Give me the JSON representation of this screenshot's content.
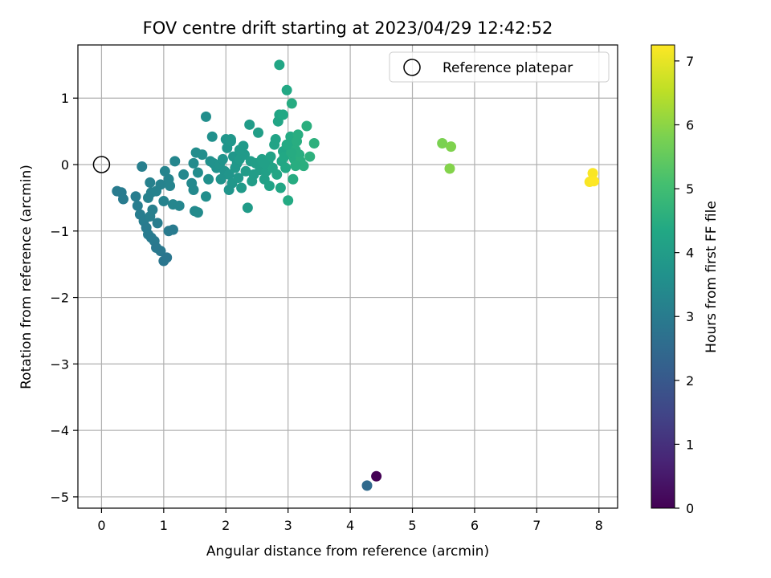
{
  "chart_data": {
    "type": "scatter",
    "title": "FOV centre drift starting at 2023/04/29 12:42:52",
    "xlabel": "Angular distance from reference (arcmin)",
    "ylabel": "Rotation from reference (arcmin)",
    "colorbar_label": "Hours from first FF file",
    "xlim": [
      -0.38,
      8.3
    ],
    "ylim": [
      -5.17,
      1.8
    ],
    "clim": [
      0,
      7.25
    ],
    "x_ticks": [
      0,
      1,
      2,
      3,
      4,
      5,
      6,
      7,
      8
    ],
    "y_ticks": [
      -5,
      -4,
      -3,
      -2,
      -1,
      0,
      1
    ],
    "colorbar_ticks": [
      0,
      1,
      2,
      3,
      4,
      5,
      6,
      7
    ],
    "grid": true,
    "colormap": "viridis",
    "legend": {
      "placement": "top-right",
      "entries": [
        "Reference platepar"
      ]
    },
    "reference_point": {
      "x": 0,
      "y": 0,
      "label": "Reference platepar"
    },
    "points": [
      {
        "x": 4.42,
        "y": -4.69,
        "h": 0.0
      },
      {
        "x": 4.27,
        "y": -4.83,
        "h": 2.5
      },
      {
        "x": 0.25,
        "y": -0.4,
        "h": 3.0
      },
      {
        "x": 0.32,
        "y": -0.42,
        "h": 3.0
      },
      {
        "x": 0.35,
        "y": -0.52,
        "h": 3.0
      },
      {
        "x": 0.55,
        "y": -0.48,
        "h": 3.05
      },
      {
        "x": 0.58,
        "y": -0.62,
        "h": 3.05
      },
      {
        "x": 0.62,
        "y": -0.75,
        "h": 3.05
      },
      {
        "x": 0.68,
        "y": -0.85,
        "h": 3.05
      },
      {
        "x": 0.65,
        "y": -0.03,
        "h": 3.1
      },
      {
        "x": 0.72,
        "y": -0.95,
        "h": 3.0
      },
      {
        "x": 0.75,
        "y": -1.05,
        "h": 3.0
      },
      {
        "x": 0.8,
        "y": -1.1,
        "h": 2.95
      },
      {
        "x": 0.85,
        "y": -1.15,
        "h": 2.95
      },
      {
        "x": 0.88,
        "y": -1.25,
        "h": 2.9
      },
      {
        "x": 0.95,
        "y": -1.3,
        "h": 2.9
      },
      {
        "x": 1.0,
        "y": -1.45,
        "h": 2.85
      },
      {
        "x": 1.05,
        "y": -1.4,
        "h": 2.85
      },
      {
        "x": 1.08,
        "y": -1.0,
        "h": 3.0
      },
      {
        "x": 1.15,
        "y": -0.98,
        "h": 3.0
      },
      {
        "x": 0.9,
        "y": -0.88,
        "h": 3.05
      },
      {
        "x": 0.78,
        "y": -0.78,
        "h": 3.1
      },
      {
        "x": 0.82,
        "y": -0.68,
        "h": 3.1
      },
      {
        "x": 0.75,
        "y": -0.5,
        "h": 3.15
      },
      {
        "x": 0.8,
        "y": -0.42,
        "h": 3.15
      },
      {
        "x": 0.78,
        "y": -0.27,
        "h": 3.15
      },
      {
        "x": 0.88,
        "y": -0.4,
        "h": 3.2
      },
      {
        "x": 0.95,
        "y": -0.3,
        "h": 3.2
      },
      {
        "x": 1.0,
        "y": -0.55,
        "h": 3.2
      },
      {
        "x": 1.02,
        "y": -0.1,
        "h": 3.25
      },
      {
        "x": 1.1,
        "y": -0.32,
        "h": 3.25
      },
      {
        "x": 1.08,
        "y": -0.22,
        "h": 3.25
      },
      {
        "x": 1.15,
        "y": -0.6,
        "h": 3.3
      },
      {
        "x": 1.18,
        "y": 0.05,
        "h": 3.3
      },
      {
        "x": 1.25,
        "y": -0.62,
        "h": 3.3
      },
      {
        "x": 1.32,
        "y": -0.15,
        "h": 3.35
      },
      {
        "x": 1.45,
        "y": -0.28,
        "h": 3.4
      },
      {
        "x": 1.48,
        "y": -0.38,
        "h": 3.4
      },
      {
        "x": 1.5,
        "y": -0.7,
        "h": 3.4
      },
      {
        "x": 1.55,
        "y": -0.72,
        "h": 3.45
      },
      {
        "x": 1.48,
        "y": 0.02,
        "h": 3.45
      },
      {
        "x": 1.52,
        "y": 0.18,
        "h": 3.5
      },
      {
        "x": 1.55,
        "y": -0.12,
        "h": 3.5
      },
      {
        "x": 1.62,
        "y": 0.15,
        "h": 3.55
      },
      {
        "x": 1.68,
        "y": -0.48,
        "h": 3.55
      },
      {
        "x": 1.72,
        "y": -0.22,
        "h": 3.6
      },
      {
        "x": 1.75,
        "y": 0.05,
        "h": 3.6
      },
      {
        "x": 1.8,
        "y": 0.02,
        "h": 3.65
      },
      {
        "x": 1.85,
        "y": -0.05,
        "h": 3.65
      },
      {
        "x": 1.9,
        "y": 0.0,
        "h": 3.7
      },
      {
        "x": 1.95,
        "y": 0.08,
        "h": 3.7
      },
      {
        "x": 1.98,
        "y": -0.1,
        "h": 3.7
      },
      {
        "x": 2.0,
        "y": 0.38,
        "h": 3.75
      },
      {
        "x": 2.02,
        "y": 0.25,
        "h": 3.75
      },
      {
        "x": 2.05,
        "y": -0.15,
        "h": 3.75
      },
      {
        "x": 2.08,
        "y": 0.35,
        "h": 3.8
      },
      {
        "x": 2.1,
        "y": -0.28,
        "h": 3.8
      },
      {
        "x": 2.12,
        "y": 0.12,
        "h": 3.8
      },
      {
        "x": 2.15,
        "y": -0.05,
        "h": 3.85
      },
      {
        "x": 2.18,
        "y": 0.02,
        "h": 3.85
      },
      {
        "x": 2.2,
        "y": -0.2,
        "h": 3.85
      },
      {
        "x": 2.22,
        "y": 0.08,
        "h": 3.9
      },
      {
        "x": 2.25,
        "y": -0.35,
        "h": 3.9
      },
      {
        "x": 2.28,
        "y": 0.28,
        "h": 3.9
      },
      {
        "x": 2.3,
        "y": 0.15,
        "h": 3.9
      },
      {
        "x": 2.32,
        "y": -0.1,
        "h": 3.95
      },
      {
        "x": 2.35,
        "y": -0.65,
        "h": 3.95
      },
      {
        "x": 2.38,
        "y": 0.6,
        "h": 3.95
      },
      {
        "x": 2.4,
        "y": 0.05,
        "h": 4.0
      },
      {
        "x": 2.42,
        "y": -0.25,
        "h": 4.0
      },
      {
        "x": 2.45,
        "y": -0.15,
        "h": 4.0
      },
      {
        "x": 2.48,
        "y": 0.02,
        "h": 4.05
      },
      {
        "x": 2.52,
        "y": 0.48,
        "h": 4.05
      },
      {
        "x": 2.55,
        "y": -0.08,
        "h": 4.05
      },
      {
        "x": 2.58,
        "y": 0.08,
        "h": 4.1
      },
      {
        "x": 2.62,
        "y": -0.22,
        "h": 4.1
      },
      {
        "x": 2.65,
        "y": -0.1,
        "h": 4.1
      },
      {
        "x": 2.68,
        "y": 0.05,
        "h": 4.15
      },
      {
        "x": 2.7,
        "y": -0.32,
        "h": 4.15
      },
      {
        "x": 2.72,
        "y": 0.12,
        "h": 4.15
      },
      {
        "x": 2.75,
        "y": -0.05,
        "h": 4.2
      },
      {
        "x": 2.78,
        "y": 0.3,
        "h": 4.2
      },
      {
        "x": 2.8,
        "y": 0.38,
        "h": 4.2
      },
      {
        "x": 2.82,
        "y": -0.15,
        "h": 4.25
      },
      {
        "x": 2.84,
        "y": 0.65,
        "h": 4.25
      },
      {
        "x": 2.86,
        "y": 0.75,
        "h": 4.25
      },
      {
        "x": 2.88,
        "y": -0.35,
        "h": 4.3
      },
      {
        "x": 2.9,
        "y": 0.05,
        "h": 4.3
      },
      {
        "x": 2.92,
        "y": 0.2,
        "h": 4.3
      },
      {
        "x": 2.94,
        "y": 0.12,
        "h": 4.35
      },
      {
        "x": 2.96,
        "y": -0.05,
        "h": 4.35
      },
      {
        "x": 2.98,
        "y": 1.12,
        "h": 4.35
      },
      {
        "x": 3.0,
        "y": -0.54,
        "h": 4.4
      },
      {
        "x": 3.02,
        "y": 0.3,
        "h": 4.4
      },
      {
        "x": 3.04,
        "y": 0.42,
        "h": 4.4
      },
      {
        "x": 3.06,
        "y": 0.92,
        "h": 4.45
      },
      {
        "x": 3.08,
        "y": -0.22,
        "h": 4.45
      },
      {
        "x": 3.1,
        "y": 0.08,
        "h": 4.45
      },
      {
        "x": 3.12,
        "y": 0.22,
        "h": 4.5
      },
      {
        "x": 3.14,
        "y": 0.35,
        "h": 4.5
      },
      {
        "x": 3.16,
        "y": 0.45,
        "h": 4.5
      },
      {
        "x": 3.18,
        "y": 0.15,
        "h": 4.5
      },
      {
        "x": 3.2,
        "y": 0.05,
        "h": 4.55
      },
      {
        "x": 3.25,
        "y": -0.02,
        "h": 4.55
      },
      {
        "x": 3.3,
        "y": 0.58,
        "h": 4.55
      },
      {
        "x": 3.35,
        "y": 0.12,
        "h": 4.6
      },
      {
        "x": 3.42,
        "y": 0.32,
        "h": 4.6
      },
      {
        "x": 2.86,
        "y": 1.5,
        "h": 4.3
      },
      {
        "x": 2.92,
        "y": 0.75,
        "h": 4.35
      },
      {
        "x": 1.68,
        "y": 0.72,
        "h": 3.55
      },
      {
        "x": 1.78,
        "y": 0.42,
        "h": 3.6
      },
      {
        "x": 2.08,
        "y": 0.38,
        "h": 3.8
      },
      {
        "x": 2.22,
        "y": 0.22,
        "h": 3.9
      },
      {
        "x": 1.92,
        "y": -0.22,
        "h": 3.7
      },
      {
        "x": 2.05,
        "y": -0.38,
        "h": 3.75
      },
      {
        "x": 2.62,
        "y": 0.02,
        "h": 4.1
      },
      {
        "x": 3.05,
        "y": 0.18,
        "h": 4.45
      },
      {
        "x": 3.12,
        "y": -0.02,
        "h": 4.5
      },
      {
        "x": 2.98,
        "y": 0.3,
        "h": 4.4
      },
      {
        "x": 5.48,
        "y": 0.32,
        "h": 5.8
      },
      {
        "x": 5.62,
        "y": 0.27,
        "h": 5.85
      },
      {
        "x": 5.6,
        "y": -0.06,
        "h": 5.9
      },
      {
        "x": 7.9,
        "y": -0.13,
        "h": 7.2
      },
      {
        "x": 7.85,
        "y": -0.26,
        "h": 7.2
      },
      {
        "x": 7.92,
        "y": -0.25,
        "h": 7.25
      }
    ]
  }
}
